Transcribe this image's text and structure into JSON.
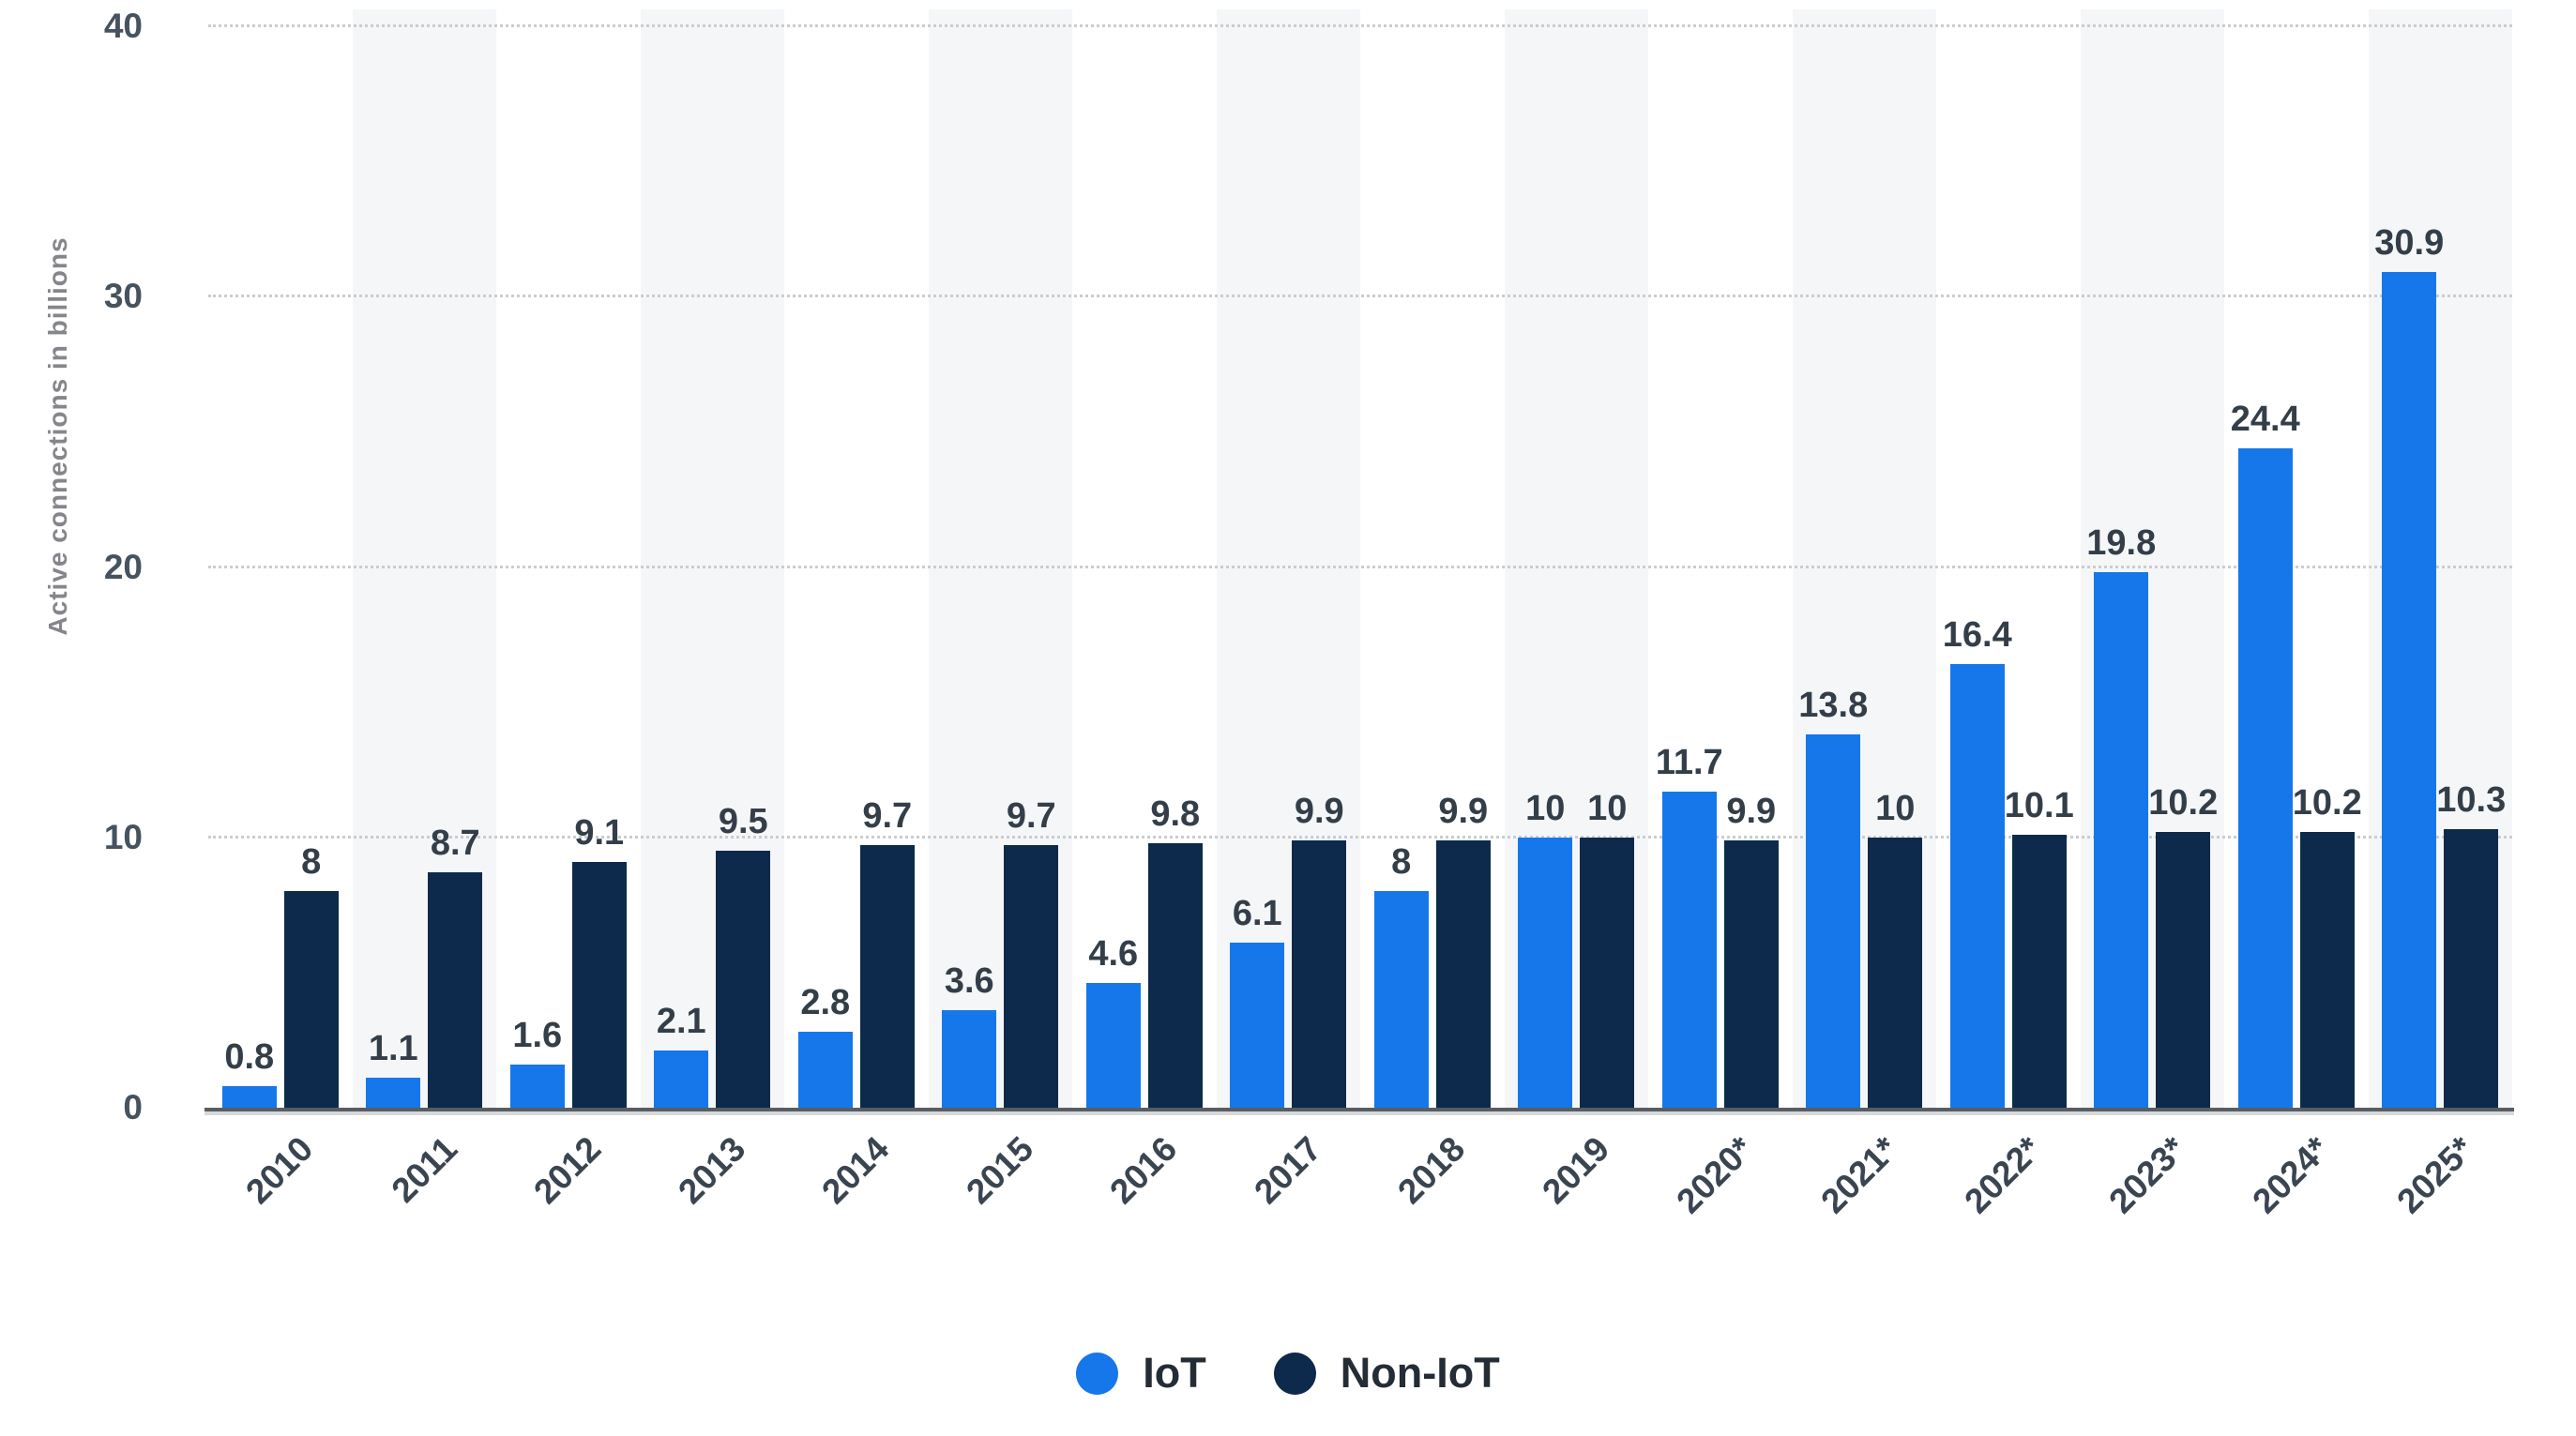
{
  "chart_data": {
    "type": "bar",
    "title": "",
    "xlabel": "",
    "ylabel": "Active connections in billions",
    "ylim": [
      0,
      40
    ],
    "yticks": [
      0,
      10,
      20,
      30,
      40
    ],
    "grid": "horizontal-dotted",
    "background_stripes": "alternating vertical bands behind odd year columns",
    "legend_position": "bottom-center",
    "categories": [
      "2010",
      "2011",
      "2012",
      "2013",
      "2014",
      "2015",
      "2016",
      "2017",
      "2018",
      "2019",
      "2020*",
      "2021*",
      "2022*",
      "2023*",
      "2024*",
      "2025*"
    ],
    "series": [
      {
        "name": "IoT",
        "color": "#1677ea",
        "values": [
          0.8,
          1.1,
          1.6,
          2.1,
          2.8,
          3.6,
          4.6,
          6.1,
          8,
          10,
          11.7,
          13.8,
          16.4,
          19.8,
          24.4,
          30.9
        ],
        "labels": [
          "0.8",
          "1.1",
          "1.6",
          "2.1",
          "2.8",
          "3.6",
          "4.6",
          "6.1",
          "8",
          "10",
          "11.7",
          "13.8",
          "16.4",
          "19.8",
          "24.4",
          "30.9"
        ]
      },
      {
        "name": "Non-IoT",
        "color": "#0d2a4c",
        "values": [
          8,
          8.7,
          9.1,
          9.5,
          9.7,
          9.7,
          9.8,
          9.9,
          9.9,
          10,
          9.9,
          10,
          10.1,
          10.2,
          10.2,
          10.3
        ],
        "labels": [
          "8",
          "8.7",
          "9.1",
          "9.5",
          "9.7",
          "9.7",
          "9.8",
          "9.9",
          "9.9",
          "10",
          "9.9",
          "10",
          "10.1",
          "10.2",
          "10.2",
          "10.3"
        ]
      }
    ]
  }
}
